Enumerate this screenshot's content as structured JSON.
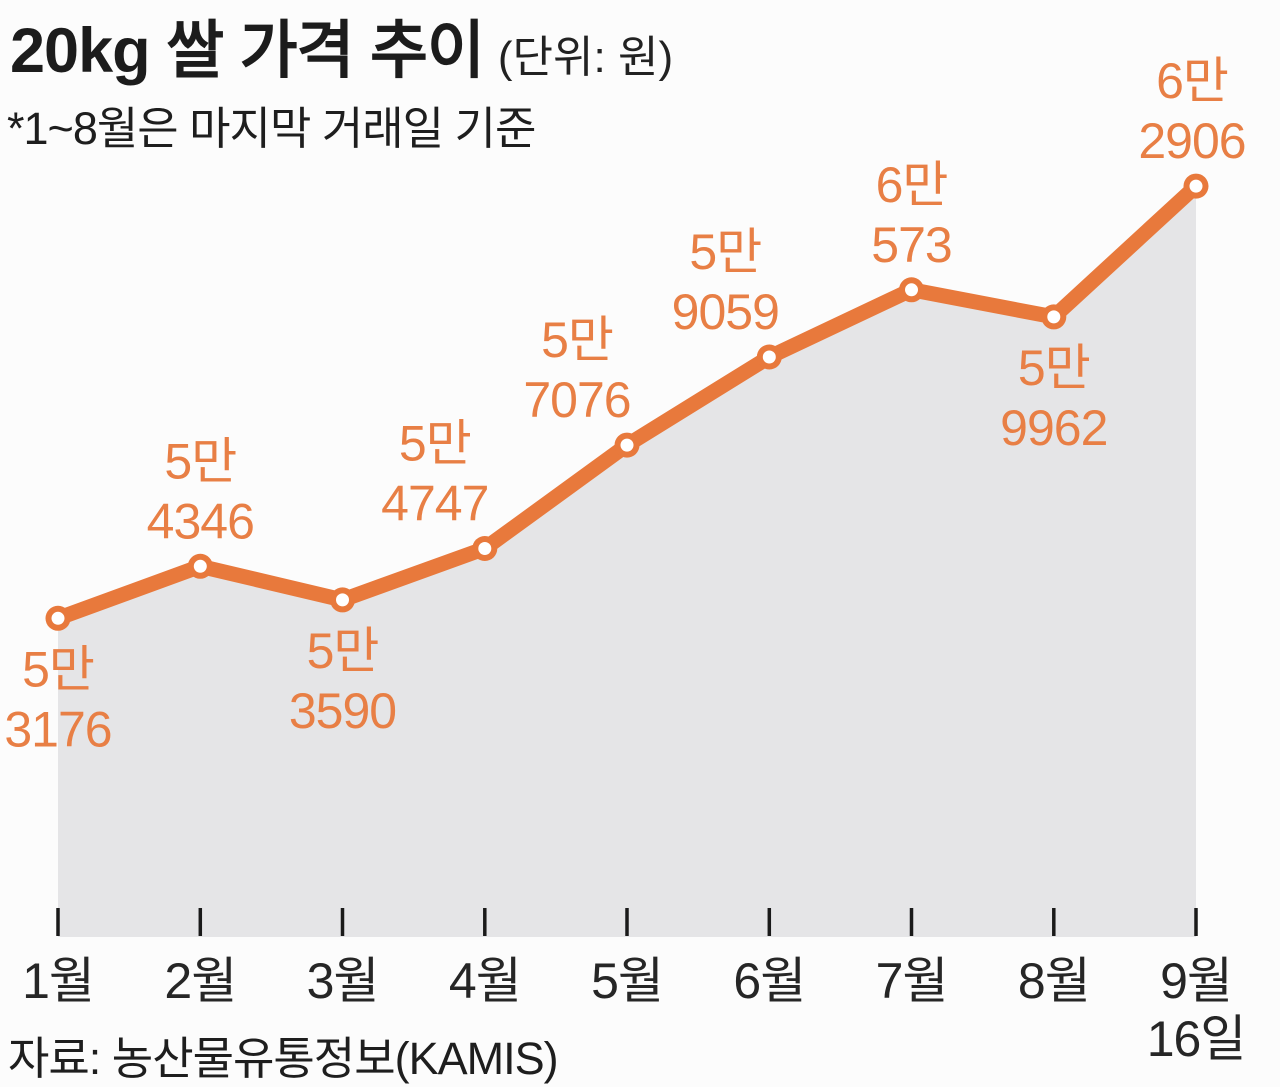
{
  "header": {
    "title": "20kg 쌀 가격 추이",
    "unit": "(단위: 원)",
    "subtitle": "*1~8월은 마지막 거래일 기준"
  },
  "footer": {
    "source": "자료: 농산물유통정보(KAMIS)"
  },
  "colors": {
    "accent": "#e8793c",
    "label_text": "#e87f45",
    "area_fill": "#e5e5e7",
    "marker_hole": "#ffffff",
    "axis_text": "#262626",
    "tick": "#1a1a1a"
  },
  "chart_data": {
    "type": "line",
    "title": "20kg 쌀 가격 추이",
    "subtitle": "*1~8월은 마지막 거래일 기준",
    "unit_label": "(단위: 원)",
    "source": "자료: 농산물유통정보(KAMIS)",
    "area_fill": true,
    "grid": false,
    "legend": false,
    "ylim": [
      46000,
      63900
    ],
    "x_tick_labels": [
      [
        "1월"
      ],
      [
        "2월"
      ],
      [
        "3월"
      ],
      [
        "4월"
      ],
      [
        "5월"
      ],
      [
        "6월"
      ],
      [
        "7월"
      ],
      [
        "8월"
      ],
      [
        "9월",
        "16일"
      ]
    ],
    "values": [
      53176,
      54346,
      53590,
      54747,
      57076,
      59059,
      60573,
      59962,
      62906
    ],
    "point_labels": [
      [
        "5만",
        "3176"
      ],
      [
        "5만",
        "4346"
      ],
      [
        "5만",
        "3590"
      ],
      [
        "5만",
        "4747"
      ],
      [
        "5만",
        "7076"
      ],
      [
        "5만",
        "9059"
      ],
      [
        "6만",
        "573"
      ],
      [
        "5만",
        "9962"
      ],
      [
        "6만",
        "2906"
      ]
    ],
    "label_positions": [
      "below",
      "above",
      "below",
      "above",
      "above",
      "above",
      "above",
      "below",
      "above"
    ],
    "label_dx": [
      0,
      0,
      0,
      -50,
      -50,
      -44,
      0,
      0,
      -4
    ]
  }
}
